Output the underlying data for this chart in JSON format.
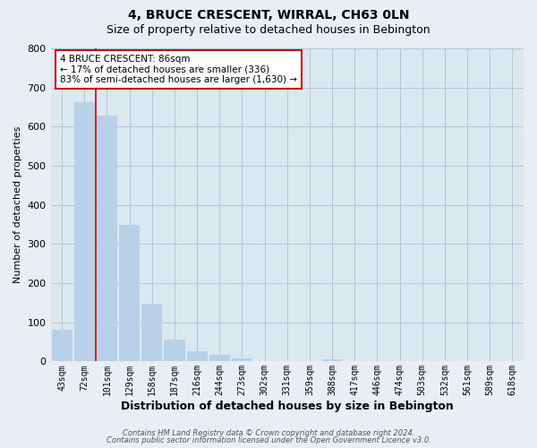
{
  "title": "4, BRUCE CRESCENT, WIRRAL, CH63 0LN",
  "subtitle": "Size of property relative to detached houses in Bebington",
  "xlabel": "Distribution of detached houses by size in Bebington",
  "ylabel": "Number of detached properties",
  "bar_labels": [
    "43sqm",
    "72sqm",
    "101sqm",
    "129sqm",
    "158sqm",
    "187sqm",
    "216sqm",
    "244sqm",
    "273sqm",
    "302sqm",
    "331sqm",
    "359sqm",
    "388sqm",
    "417sqm",
    "446sqm",
    "474sqm",
    "503sqm",
    "532sqm",
    "561sqm",
    "589sqm",
    "618sqm"
  ],
  "bar_values": [
    82,
    663,
    628,
    348,
    148,
    57,
    27,
    18,
    8,
    1,
    0,
    0,
    6,
    0,
    0,
    0,
    0,
    0,
    0,
    0,
    0
  ],
  "bar_color": "#b8d0e8",
  "highlight_color": "#cc0000",
  "red_line_x": 1.5,
  "annotation_title": "4 BRUCE CRESCENT: 86sqm",
  "annotation_line1": "← 17% of detached houses are smaller (336)",
  "annotation_line2": "83% of semi-detached houses are larger (1,630) →",
  "annotation_box_color": "#ffffff",
  "annotation_box_edge": "#cc0000",
  "ylim": [
    0,
    800
  ],
  "yticks": [
    0,
    100,
    200,
    300,
    400,
    500,
    600,
    700,
    800
  ],
  "footer_line1": "Contains HM Land Registry data © Crown copyright and database right 2024.",
  "footer_line2": "Contains public sector information licensed under the Open Government Licence v3.0.",
  "background_color": "#e8eef4",
  "plot_bg_color": "#dce8f0",
  "grid_color": "#b0c4d8",
  "title_fontsize": 10,
  "subtitle_fontsize": 9,
  "xlabel_fontsize": 9,
  "ylabel_fontsize": 8
}
